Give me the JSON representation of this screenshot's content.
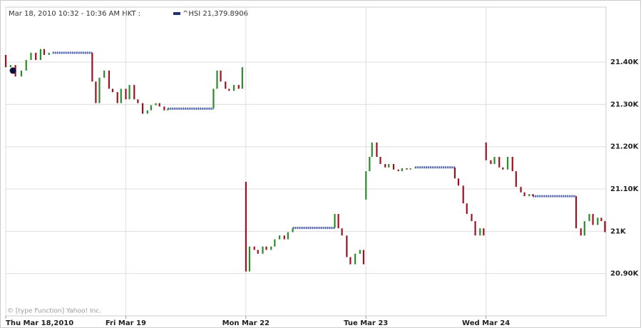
{
  "chart_data": {
    "type": "candlestick",
    "header": "Mar 18, 2010 10:32 - 10:36 AM HKT :",
    "legend_label": "^HSI 21,379.8906",
    "footer": "© [type Function] Yahoo! Inc.",
    "up_color": "#2a8c2a",
    "down_color": "#9e1020",
    "flat_color": "#4b5fa8",
    "legend_color": "#1f2f78",
    "grid": true,
    "xlim": [
      0,
      5
    ],
    "xticks": [
      {
        "value": 0,
        "label": "Thu Mar 18,2010"
      },
      {
        "value": 1,
        "label": "Fri Mar 19"
      },
      {
        "value": 2,
        "label": "Mon Mar 22"
      },
      {
        "value": 3,
        "label": "Tue Mar 23"
      },
      {
        "value": 4,
        "label": "Wed Mar 24"
      }
    ],
    "ylim": [
      20800,
      21530
    ],
    "yticks": [
      {
        "value": 20900,
        "label": "20.90K"
      },
      {
        "value": 21000,
        "label": "21K"
      },
      {
        "value": 21100,
        "label": "21.10K"
      },
      {
        "value": 21200,
        "label": "21.20K"
      },
      {
        "value": 21300,
        "label": "21.30K"
      },
      {
        "value": 21400,
        "label": "21.40K"
      }
    ],
    "x": [
      0.0,
      0.04,
      0.08,
      0.13,
      0.17,
      0.21,
      0.25,
      0.29,
      0.32,
      0.36,
      0.72,
      0.75,
      0.78,
      0.82,
      0.86,
      0.89,
      0.93,
      0.96,
      1.0,
      1.03,
      1.07,
      1.1,
      1.14,
      1.18,
      1.21,
      1.25,
      1.28,
      1.32,
      1.35,
      1.73,
      1.76,
      1.79,
      1.83,
      1.86,
      1.9,
      1.94,
      1.97,
      2.0,
      2.03,
      2.07,
      2.1,
      2.14,
      2.17,
      2.21,
      2.24,
      2.28,
      2.32,
      2.35,
      2.39,
      2.74,
      2.77,
      2.8,
      2.84,
      2.87,
      2.91,
      2.95,
      2.98,
      3.0,
      3.03,
      3.05,
      3.09,
      3.12,
      3.16,
      3.19,
      3.23,
      3.27,
      3.3,
      3.34,
      3.37,
      3.41,
      3.74,
      3.77,
      3.81,
      3.84,
      3.88,
      3.91,
      3.95,
      3.98,
      4.0,
      4.04,
      4.07,
      4.11,
      4.14,
      4.18,
      4.22,
      4.25,
      4.29,
      4.32,
      4.36,
      4.39,
      4.75,
      4.79,
      4.82,
      4.86,
      4.89,
      4.93,
      4.96,
      4.99
    ],
    "open": [
      21417,
      21388,
      21393,
      21366,
      21380,
      21405,
      21422,
      21405,
      21431,
      21417,
      21422,
      21354,
      21303,
      21363,
      21380,
      21337,
      21329,
      21303,
      21337,
      21312,
      21346,
      21312,
      21303,
      21278,
      21286,
      21298,
      21303,
      21295,
      21286,
      21290,
      21337,
      21380,
      21354,
      21337,
      21332,
      21346,
      21337,
      21117,
      20905,
      20964,
      20956,
      20947,
      20964,
      20956,
      20964,
      20981,
      20990,
      20981,
      20998,
      21008,
      21041,
      21007,
      20990,
      20939,
      20922,
      20947,
      20956,
      21075,
      21142,
      21176,
      21210,
      21176,
      21159,
      21151,
      21159,
      21146,
      21142,
      21149,
      21146,
      21149,
      21151,
      21125,
      21108,
      21066,
      21041,
      21024,
      20990,
      21007,
      21210,
      21168,
      21159,
      21176,
      21151,
      21146,
      21176,
      21142,
      21105,
      21092,
      21083,
      21088,
      21083,
      21007,
      20990,
      21024,
      21041,
      21015,
      21032,
      21024
    ],
    "close": [
      21388,
      21393,
      21366,
      21380,
      21405,
      21422,
      21405,
      21431,
      21417,
      21422,
      21354,
      21303,
      21363,
      21380,
      21337,
      21329,
      21303,
      21337,
      21312,
      21346,
      21312,
      21303,
      21278,
      21286,
      21298,
      21303,
      21295,
      21286,
      21290,
      21337,
      21380,
      21354,
      21337,
      21332,
      21346,
      21337,
      21388,
      20905,
      20964,
      20956,
      20947,
      20964,
      20956,
      20964,
      20981,
      20990,
      20981,
      20998,
      21007,
      21041,
      21007,
      20990,
      20939,
      20922,
      20947,
      20956,
      20922,
      21142,
      21176,
      21210,
      21176,
      21159,
      21151,
      21159,
      21146,
      21142,
      21149,
      21146,
      21149,
      21151,
      21125,
      21108,
      21066,
      21041,
      21024,
      20990,
      21007,
      20990,
      21168,
      21159,
      21176,
      21151,
      21146,
      21176,
      21142,
      21105,
      21092,
      21083,
      21088,
      21083,
      21007,
      20990,
      21024,
      21041,
      21015,
      21032,
      21024,
      20998
    ],
    "flat_segments": {
      "start": [
        0.39,
        1.35,
        2.39,
        3.41,
        4.39
      ],
      "end": [
        0.72,
        1.73,
        2.74,
        3.74,
        4.75
      ],
      "values": [
        21422,
        21290,
        21008,
        21151,
        21083
      ]
    },
    "marker": {
      "x": 0.06,
      "value": 21379.8906
    }
  }
}
